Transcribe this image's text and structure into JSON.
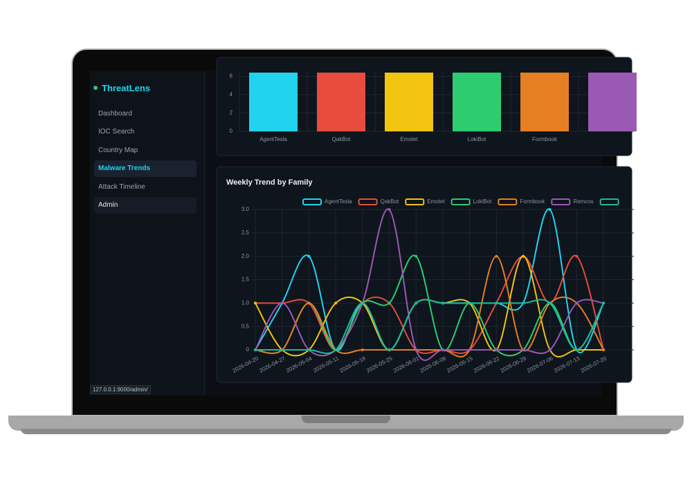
{
  "sidebar": {
    "brand": "ThreatLens",
    "nav": [
      "Dashboard",
      "IOC Search",
      "Country Map",
      "Malware Trends",
      "Attack Timeline",
      "Admin"
    ]
  },
  "status_url": "127.0.0.1:9000/admin/",
  "chart_data": [
    {
      "type": "bar",
      "categories": [
        "AgentTesla",
        "QakBot",
        "Emotet",
        "LokiBot",
        "Formbook",
        null
      ],
      "values": [
        6.4,
        6.4,
        6.4,
        6.4,
        6.4,
        6.4
      ],
      "colors": [
        "#22d3ee",
        "#e74c3c",
        "#f1c40f",
        "#2ecc71",
        "#e67e22",
        "#9b59b6"
      ],
      "ylim": [
        0,
        6.4
      ],
      "yticks": [
        0,
        2,
        4,
        6
      ],
      "grid": true
    },
    {
      "type": "line",
      "title": "Weekly Trend by Family",
      "x": [
        "2026-04-20",
        "2026-04-27",
        "2026-05-04",
        "2026-05-11",
        "2026-05-18",
        "2026-05-25",
        "2026-06-01",
        "2026-06-08",
        "2026-06-15",
        "2026-06-22",
        "2026-06-29",
        "2026-07-06",
        "2026-07-13",
        "2026-07-20"
      ],
      "series": [
        {
          "name": "AgentTesla",
          "color": "#22d3ee",
          "values": [
            0,
            1,
            2,
            0,
            1,
            0,
            1,
            1,
            1,
            1,
            1,
            3,
            0,
            1
          ]
        },
        {
          "name": "QakBot",
          "color": "#e74c3c",
          "values": [
            1,
            1,
            1,
            0,
            1,
            1,
            0,
            0,
            0,
            1,
            2,
            1,
            2,
            0
          ]
        },
        {
          "name": "Emotet",
          "color": "#f1c40f",
          "values": [
            1,
            0,
            0,
            1,
            1,
            0,
            1,
            1,
            1,
            0,
            2,
            0,
            0,
            0
          ]
        },
        {
          "name": "LokiBot",
          "color": "#2ecc71",
          "values": [
            0,
            0,
            1,
            0,
            1,
            1,
            2,
            0,
            1,
            0,
            0,
            1,
            0,
            1
          ]
        },
        {
          "name": "Formbook",
          "color": "#e67e22",
          "values": [
            0,
            0,
            1,
            0,
            0,
            0,
            0,
            0,
            0,
            2,
            0,
            1,
            1,
            0
          ]
        },
        {
          "name": "Remcos",
          "color": "#9b59b6",
          "values": [
            0,
            1,
            0,
            0,
            1,
            3,
            0,
            0,
            0,
            0,
            0,
            0,
            1,
            1
          ]
        },
        {
          "name": null,
          "color": "#1abc9c",
          "values": [
            0,
            0,
            0,
            0,
            1,
            0,
            1,
            1,
            1,
            1,
            1,
            1,
            0,
            1
          ]
        }
      ],
      "ylim": [
        0,
        3
      ],
      "yticks": [
        0,
        0.5,
        {
          "value": 1,
          "label": "1.0"
        },
        1.5,
        {
          "value": 2,
          "label": "2.0"
        },
        2.5,
        {
          "value": 3,
          "label": "3.0"
        }
      ],
      "grid": true,
      "legend": "top"
    }
  ]
}
